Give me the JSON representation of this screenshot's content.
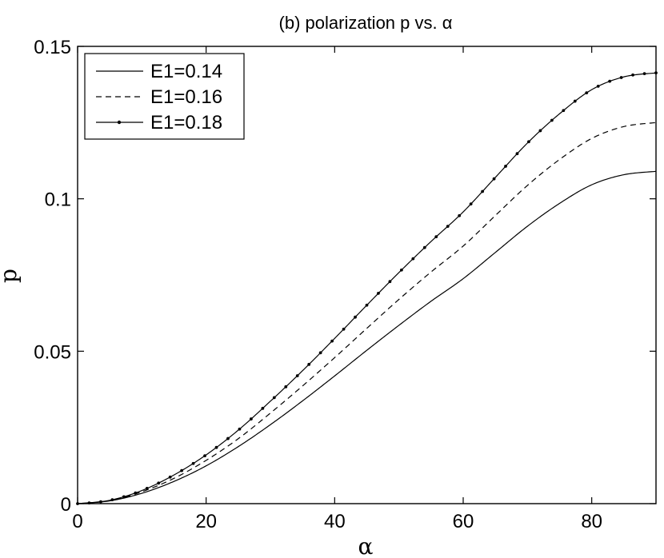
{
  "chart_data": {
    "type": "line",
    "title": "(b) polarization p vs. α",
    "xlabel": "α",
    "ylabel": "p",
    "xlim": [
      0,
      90
    ],
    "ylim": [
      0,
      0.15
    ],
    "xticks": [
      0,
      20,
      40,
      60,
      80
    ],
    "yticks": [
      0,
      0.05,
      0.1,
      0.15
    ],
    "xtick_labels": [
      "0",
      "20",
      "40",
      "60",
      "80"
    ],
    "ytick_labels": [
      "0",
      "0.05",
      "0.1",
      "0.15"
    ],
    "grid": false,
    "legend_position": "top-left",
    "x": [
      0,
      5,
      10,
      15,
      20,
      25,
      30,
      35,
      40,
      45,
      50,
      55,
      60,
      65,
      70,
      75,
      80,
      85,
      90
    ],
    "series": [
      {
        "name": "E1=0.14",
        "style": "solid",
        "values": [
          0,
          0.0009,
          0.0034,
          0.0073,
          0.0124,
          0.0187,
          0.0259,
          0.0337,
          0.0419,
          0.0503,
          0.0585,
          0.0664,
          0.0738,
          0.0824,
          0.091,
          0.0985,
          0.1046,
          0.1079,
          0.109
        ]
      },
      {
        "name": "E1=0.16",
        "style": "dashed",
        "values": [
          0,
          0.001,
          0.0039,
          0.0083,
          0.0142,
          0.0213,
          0.0297,
          0.0386,
          0.0479,
          0.0575,
          0.067,
          0.076,
          0.0845,
          0.0945,
          0.1044,
          0.1129,
          0.1198,
          0.1237,
          0.125
        ]
      },
      {
        "name": "E1=0.18",
        "style": "solid-dots",
        "values": [
          0,
          0.0011,
          0.0043,
          0.0094,
          0.016,
          0.0241,
          0.0336,
          0.0436,
          0.0542,
          0.0651,
          0.0758,
          0.086,
          0.0957,
          0.107,
          0.1183,
          0.1279,
          0.1358,
          0.14,
          0.1413
        ]
      }
    ]
  }
}
